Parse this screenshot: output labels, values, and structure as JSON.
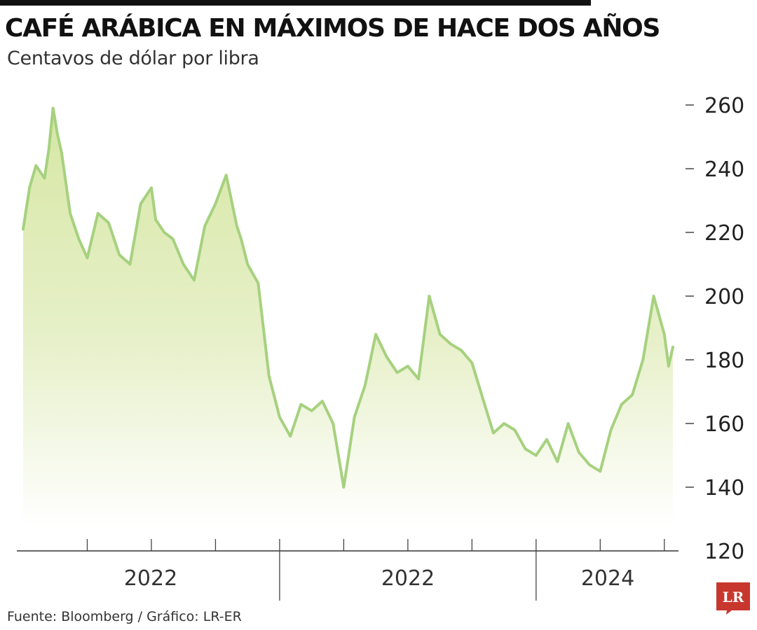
{
  "chart_data": {
    "type": "area",
    "title": "CAFÉ ARÁBICA EN MÁXIMOS DE HACE DOS AÑOS",
    "subtitle": "Centavos de dólar por libra",
    "ylim": [
      120,
      260
    ],
    "yticks": [
      120,
      140,
      160,
      180,
      200,
      220,
      240,
      260
    ],
    "x_ticks": [
      "2022",
      "2022",
      "2024"
    ],
    "grid": false,
    "line_color": "#a6d17f",
    "fill_top_color": "#d8e8a8",
    "x_period_index": [
      0,
      30,
      60,
      90,
      120,
      150,
      180,
      210,
      240,
      270,
      300
    ],
    "series": [
      {
        "x": [
          0,
          3,
          6,
          10,
          12,
          14,
          16,
          18,
          22,
          26,
          30,
          35,
          40,
          45,
          50,
          55,
          60,
          62,
          66,
          70,
          75,
          80,
          85,
          90,
          95,
          100,
          102,
          105,
          110,
          115,
          120,
          125,
          130,
          135,
          140,
          145,
          150,
          155,
          160,
          165,
          170,
          175,
          180,
          185,
          190,
          195,
          200,
          205,
          210,
          215,
          220,
          225,
          230,
          235,
          240,
          245,
          250,
          255,
          260,
          265,
          270,
          275,
          280,
          285,
          290,
          295,
          300,
          302,
          304
        ],
        "y": [
          221,
          234,
          241,
          237,
          246,
          259,
          251,
          245,
          226,
          218,
          212,
          226,
          223,
          213,
          210,
          229,
          234,
          224,
          220,
          218,
          210,
          205,
          222,
          229,
          238,
          222,
          218,
          210,
          204,
          175,
          162,
          156,
          166,
          164,
          167,
          160,
          140,
          162,
          172,
          188,
          181,
          176,
          178,
          174,
          200,
          188,
          185,
          183,
          179,
          168,
          157,
          160,
          158,
          152,
          150,
          155,
          148,
          160,
          151,
          147,
          145,
          158,
          166,
          169,
          180,
          200,
          188,
          178,
          184
        ]
      }
    ],
    "source": "Fuente: Bloomberg / Gráfico: LR-ER",
    "logo_text": "LR",
    "logo_color": "#c8372d"
  }
}
